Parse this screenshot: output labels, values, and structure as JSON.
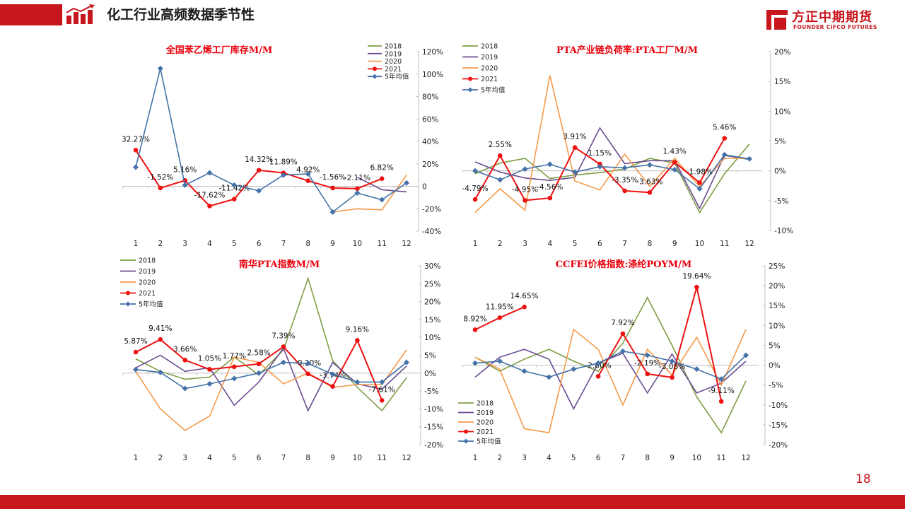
{
  "header": {
    "title": "化工行业高频数据季节性"
  },
  "brand": {
    "name_cn": "方正中期期货",
    "name_en": "FOUNDER CIFCO FUTURES"
  },
  "page": {
    "number": "18"
  },
  "colors": {
    "2018": "#7f9e46",
    "2019": "#6a4c92",
    "2020": "#f59a4a",
    "2021": "#ee1111",
    "avg": "#4472a8",
    "accent": "#c8161d"
  },
  "chart_data": [
    {
      "type": "line",
      "title": "全国苯乙烯工厂库存M/M",
      "categories": [
        "1",
        "2",
        "3",
        "4",
        "5",
        "6",
        "7",
        "8",
        "9",
        "10",
        "11",
        "12"
      ],
      "y_ticks": [
        "-40%",
        "-20%",
        "0",
        "20%",
        "40%",
        "60%",
        "80%",
        "100%",
        "120%"
      ],
      "ylim": [
        -40,
        120
      ],
      "legend_position": "top-right",
      "series": [
        {
          "name": "2018",
          "key": "2018",
          "values": [
            null,
            null,
            null,
            null,
            null,
            null,
            null,
            null,
            null,
            null,
            null,
            null
          ]
        },
        {
          "name": "2019",
          "key": "2019",
          "values": [
            null,
            null,
            null,
            null,
            null,
            null,
            null,
            null,
            null,
            8,
            -3,
            -5
          ]
        },
        {
          "name": "2020",
          "key": "2020",
          "values": [
            null,
            null,
            null,
            null,
            null,
            null,
            null,
            null,
            -23,
            -20,
            -21,
            10
          ]
        },
        {
          "name": "2021",
          "key": "2021",
          "values": [
            32.27,
            -1.52,
            5.16,
            -17.62,
            -11.42,
            14.32,
            11.89,
            4.92,
            -1.56,
            -2.11,
            6.82,
            null
          ],
          "labels": [
            "32.27%",
            "-1.52%",
            "5.16%",
            "-17.62%",
            "-11.42%",
            "14.32%",
            "11.89%",
            "4.92%",
            "-1.56%",
            "-2.11%",
            "6.82%",
            ""
          ]
        },
        {
          "name": "5年均值",
          "key": "avg",
          "values": [
            17,
            105,
            1,
            12,
            1,
            -4,
            10,
            11,
            -23,
            -6,
            -12,
            3
          ]
        }
      ]
    },
    {
      "type": "line",
      "title": "PTA产业链负荷率:PTA工厂M/M",
      "categories": [
        "1",
        "2",
        "3",
        "4",
        "5",
        "6",
        "7",
        "8",
        "9",
        "10",
        "11",
        "12"
      ],
      "y_ticks": [
        "-10%",
        "-5%",
        "0%",
        "5%",
        "10%",
        "15%",
        "20%"
      ],
      "ylim": [
        -10,
        20
      ],
      "legend_position": "top-left",
      "series": [
        {
          "name": "2018",
          "key": "2018",
          "values": [
            -0.5,
            1.3,
            2.1,
            -1.3,
            -0.7,
            -0.3,
            0.3,
            2.1,
            1.3,
            -7,
            -0.5,
            4.5
          ]
        },
        {
          "name": "2019",
          "key": "2019",
          "values": [
            1.5,
            -0.2,
            -1.2,
            -1.6,
            -1.1,
            7.2,
            1.2,
            1.7,
            1.7,
            -6.3,
            2.6,
            1.9
          ]
        },
        {
          "name": "2020",
          "key": "2020",
          "values": [
            -7,
            -3,
            -6.6,
            16,
            -1.7,
            -3.2,
            2.8,
            -2.6,
            2.1,
            -2.6,
            2.1,
            2.1
          ]
        },
        {
          "name": "2021",
          "key": "2021",
          "values": [
            -4.79,
            2.55,
            -4.95,
            -4.56,
            3.91,
            1.15,
            -3.35,
            -3.63,
            1.43,
            -1.98,
            5.46,
            null
          ],
          "labels": [
            "-4.79%",
            "2.55%",
            "-4.95%",
            "-4.56%",
            "3.91%",
            "1.15%",
            "-3.35%",
            "-3.63%",
            "1.43%",
            "-1.98%",
            "5.46%",
            ""
          ]
        },
        {
          "name": "5年均值",
          "key": "avg",
          "values": [
            0,
            -1.5,
            0.3,
            1.1,
            -0.2,
            0.7,
            0.5,
            1,
            0.2,
            -3,
            2.7,
            2
          ]
        }
      ]
    },
    {
      "type": "line",
      "title": "南华PTA指数M/M",
      "categories": [
        "1",
        "2",
        "3",
        "4",
        "5",
        "6",
        "7",
        "8",
        "9",
        "10",
        "11",
        "12"
      ],
      "y_ticks": [
        "-20%",
        "-15%",
        "-10%",
        "-5%",
        "0%",
        "5%",
        "10%",
        "15%",
        "20%",
        "25%",
        "30%"
      ],
      "ylim": [
        -20,
        30
      ],
      "legend_position": "top-left",
      "series": [
        {
          "name": "2018",
          "key": "2018",
          "values": [
            4,
            0.5,
            -1.7,
            -1.1,
            4.5,
            -0.5,
            6.5,
            26.5,
            3.5,
            -4,
            -10.5,
            -1.3
          ]
        },
        {
          "name": "2019",
          "key": "2019",
          "values": [
            1.5,
            5,
            0.5,
            1.5,
            -9,
            -2.5,
            7,
            -10.5,
            3,
            -3,
            -4.5,
            2
          ]
        },
        {
          "name": "2020",
          "key": "2020",
          "values": [
            0.5,
            -10,
            -16,
            -12,
            4.5,
            3,
            -3,
            0,
            -4,
            -3.2,
            -3.2,
            6.5
          ]
        },
        {
          "name": "2021",
          "key": "2021",
          "values": [
            5.87,
            9.41,
            3.66,
            1.05,
            1.77,
            2.58,
            7.39,
            -0.2,
            -3.74,
            9.16,
            -7.61,
            null
          ],
          "labels": [
            "5.87%",
            "9.41%",
            "3.66%",
            "1.05%",
            "1.77%",
            "2.58%",
            "7.39%",
            "-0.20%",
            "-3.74%",
            "9.16%",
            "-7.61%",
            ""
          ]
        },
        {
          "name": "5年均值",
          "key": "avg",
          "values": [
            1,
            0.2,
            -4.3,
            -3,
            -1.5,
            0,
            3,
            2.7,
            -0.3,
            -2.5,
            -2.5,
            3
          ]
        }
      ]
    },
    {
      "type": "line",
      "title": "CCFEI价格指数:涤纶POYM/M",
      "categories": [
        "1",
        "2",
        "3",
        "4",
        "5",
        "6",
        "7",
        "8",
        "9",
        "10",
        "11",
        "12"
      ],
      "y_ticks": [
        "-20%",
        "-15%",
        "-10%",
        "-5%",
        "0%",
        "5%",
        "10%",
        "15%",
        "20%",
        "25%"
      ],
      "ylim": [
        -20,
        25
      ],
      "legend_position": "bottom-left",
      "series": [
        {
          "name": "2018",
          "key": "2018",
          "values": [
            2,
            -1.5,
            1.5,
            4,
            1,
            -1.5,
            5.5,
            17,
            5,
            -8,
            -17,
            -4
          ]
        },
        {
          "name": "2019",
          "key": "2019",
          "values": [
            -3,
            2,
            4,
            1.5,
            -11,
            0.5,
            3,
            -7,
            2.8,
            -7,
            -4.5,
            1
          ]
        },
        {
          "name": "2020",
          "key": "2020",
          "values": [
            2,
            -1,
            -16,
            -17,
            9,
            4,
            -10,
            4,
            -2.5,
            7,
            -5,
            9
          ]
        },
        {
          "name": "2021",
          "key": "2021",
          "values": [
            8.92,
            11.95,
            14.65,
            null,
            null,
            -2.8,
            7.92,
            -2.19,
            -3.08,
            19.64,
            -9.11,
            null
          ],
          "labels": [
            "8.92%",
            "11.95%",
            "14.65%",
            "",
            "",
            "-2.80%",
            "7.92%",
            "-2.19%",
            "-3.08%",
            "19.64%",
            "-9.11%",
            ""
          ]
        },
        {
          "name": "5年均值",
          "key": "avg",
          "values": [
            0.5,
            1,
            -1.5,
            -3,
            -1,
            0.5,
            3.5,
            2.5,
            1,
            -1,
            -3.5,
            2.5
          ]
        }
      ]
    }
  ]
}
